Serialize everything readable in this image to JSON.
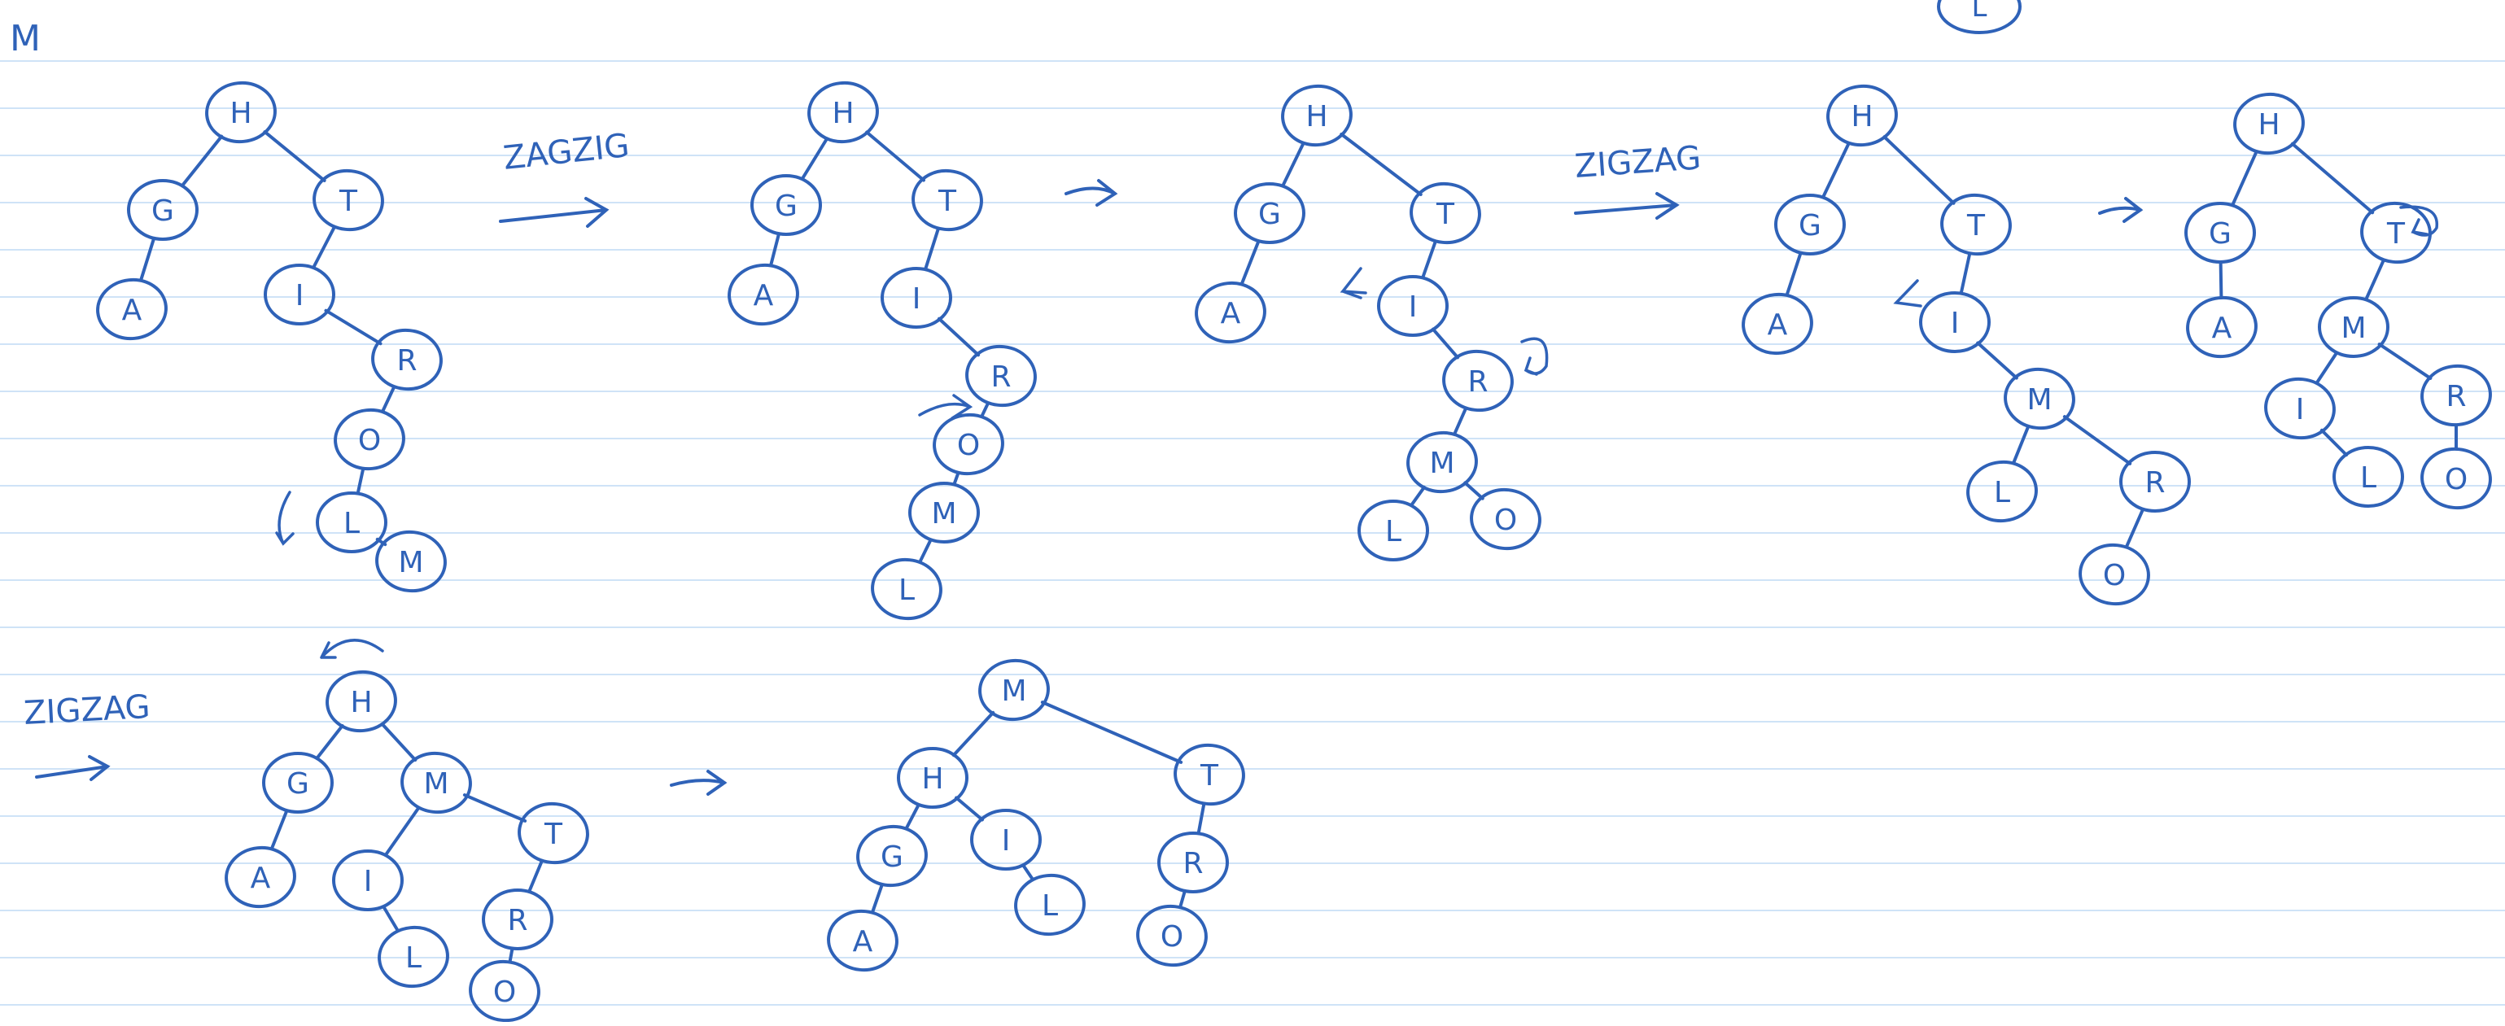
{
  "page": {
    "corner_letter": "M",
    "partial_top_node": "L",
    "ink_color": "#2f62b8",
    "rule_color": "#cfe3f7"
  },
  "labels": [
    {
      "text": "ZAGZIG"
    },
    {
      "text": "ZIGZAG"
    },
    {
      "text": "ZIGZAG"
    }
  ],
  "trees": [
    {
      "nodes": [
        {
          "id": "h",
          "label": "H"
        },
        {
          "id": "g",
          "label": "G"
        },
        {
          "id": "t",
          "label": "T"
        },
        {
          "id": "a",
          "label": "A"
        },
        {
          "id": "i",
          "label": "I"
        },
        {
          "id": "r",
          "label": "R"
        },
        {
          "id": "o",
          "label": "O"
        },
        {
          "id": "l",
          "label": "L"
        },
        {
          "id": "m",
          "label": "M"
        }
      ],
      "edges": [
        [
          "h",
          "g"
        ],
        [
          "h",
          "t"
        ],
        [
          "g",
          "a"
        ],
        [
          "t",
          "i"
        ],
        [
          "i",
          "r"
        ],
        [
          "r",
          "o"
        ],
        [
          "o",
          "l"
        ],
        [
          "l",
          "m"
        ]
      ]
    },
    {
      "nodes": [
        {
          "id": "h",
          "label": "H"
        },
        {
          "id": "g",
          "label": "G"
        },
        {
          "id": "t",
          "label": "T"
        },
        {
          "id": "a",
          "label": "A"
        },
        {
          "id": "i",
          "label": "I"
        },
        {
          "id": "r",
          "label": "R"
        },
        {
          "id": "o",
          "label": "O"
        },
        {
          "id": "m",
          "label": "M"
        },
        {
          "id": "l",
          "label": "L"
        }
      ],
      "edges": [
        [
          "h",
          "g"
        ],
        [
          "h",
          "t"
        ],
        [
          "g",
          "a"
        ],
        [
          "t",
          "i"
        ],
        [
          "i",
          "r"
        ],
        [
          "r",
          "o"
        ],
        [
          "o",
          "m"
        ],
        [
          "m",
          "l"
        ]
      ]
    },
    {
      "nodes": [
        {
          "id": "h",
          "label": "H"
        },
        {
          "id": "g",
          "label": "G"
        },
        {
          "id": "t",
          "label": "T"
        },
        {
          "id": "a",
          "label": "A"
        },
        {
          "id": "i",
          "label": "I"
        },
        {
          "id": "r",
          "label": "R"
        },
        {
          "id": "m",
          "label": "M"
        },
        {
          "id": "l",
          "label": "L"
        },
        {
          "id": "o",
          "label": "O"
        }
      ],
      "edges": [
        [
          "h",
          "g"
        ],
        [
          "h",
          "t"
        ],
        [
          "g",
          "a"
        ],
        [
          "t",
          "i"
        ],
        [
          "i",
          "r"
        ],
        [
          "r",
          "m"
        ],
        [
          "m",
          "l"
        ],
        [
          "m",
          "o"
        ]
      ]
    },
    {
      "nodes": [
        {
          "id": "h",
          "label": "H"
        },
        {
          "id": "g",
          "label": "G"
        },
        {
          "id": "t",
          "label": "T"
        },
        {
          "id": "a",
          "label": "A"
        },
        {
          "id": "i",
          "label": "I"
        },
        {
          "id": "m",
          "label": "M"
        },
        {
          "id": "l",
          "label": "L"
        },
        {
          "id": "r",
          "label": "R"
        },
        {
          "id": "o",
          "label": "O"
        }
      ],
      "edges": [
        [
          "h",
          "g"
        ],
        [
          "h",
          "t"
        ],
        [
          "g",
          "a"
        ],
        [
          "t",
          "i"
        ],
        [
          "i",
          "m"
        ],
        [
          "m",
          "l"
        ],
        [
          "m",
          "r"
        ],
        [
          "r",
          "o"
        ]
      ]
    },
    {
      "nodes": [
        {
          "id": "h",
          "label": "H"
        },
        {
          "id": "g",
          "label": "G"
        },
        {
          "id": "t",
          "label": "T"
        },
        {
          "id": "a",
          "label": "A"
        },
        {
          "id": "m",
          "label": "M"
        },
        {
          "id": "i",
          "label": "I"
        },
        {
          "id": "r",
          "label": "R"
        },
        {
          "id": "l",
          "label": "L"
        },
        {
          "id": "o",
          "label": "O"
        }
      ],
      "edges": [
        [
          "h",
          "g"
        ],
        [
          "h",
          "t"
        ],
        [
          "g",
          "a"
        ],
        [
          "t",
          "m"
        ],
        [
          "m",
          "i"
        ],
        [
          "m",
          "r"
        ],
        [
          "i",
          "l"
        ],
        [
          "r",
          "o"
        ]
      ]
    },
    {
      "nodes": [
        {
          "id": "h",
          "label": "H"
        },
        {
          "id": "g",
          "label": "G"
        },
        {
          "id": "m",
          "label": "M"
        },
        {
          "id": "a",
          "label": "A"
        },
        {
          "id": "i",
          "label": "I"
        },
        {
          "id": "t",
          "label": "T"
        },
        {
          "id": "l",
          "label": "L"
        },
        {
          "id": "r",
          "label": "R"
        },
        {
          "id": "o",
          "label": "O"
        }
      ],
      "edges": [
        [
          "h",
          "g"
        ],
        [
          "h",
          "m"
        ],
        [
          "g",
          "a"
        ],
        [
          "m",
          "i"
        ],
        [
          "m",
          "t"
        ],
        [
          "i",
          "l"
        ],
        [
          "t",
          "r"
        ],
        [
          "r",
          "o"
        ]
      ]
    },
    {
      "nodes": [
        {
          "id": "m",
          "label": "M"
        },
        {
          "id": "h",
          "label": "H"
        },
        {
          "id": "t",
          "label": "T"
        },
        {
          "id": "g",
          "label": "G"
        },
        {
          "id": "i",
          "label": "I"
        },
        {
          "id": "a",
          "label": "A"
        },
        {
          "id": "l",
          "label": "L"
        },
        {
          "id": "r",
          "label": "R"
        },
        {
          "id": "o",
          "label": "O"
        }
      ],
      "edges": [
        [
          "m",
          "h"
        ],
        [
          "m",
          "t"
        ],
        [
          "h",
          "g"
        ],
        [
          "h",
          "i"
        ],
        [
          "g",
          "a"
        ],
        [
          "i",
          "l"
        ],
        [
          "t",
          "r"
        ],
        [
          "r",
          "o"
        ]
      ]
    }
  ]
}
